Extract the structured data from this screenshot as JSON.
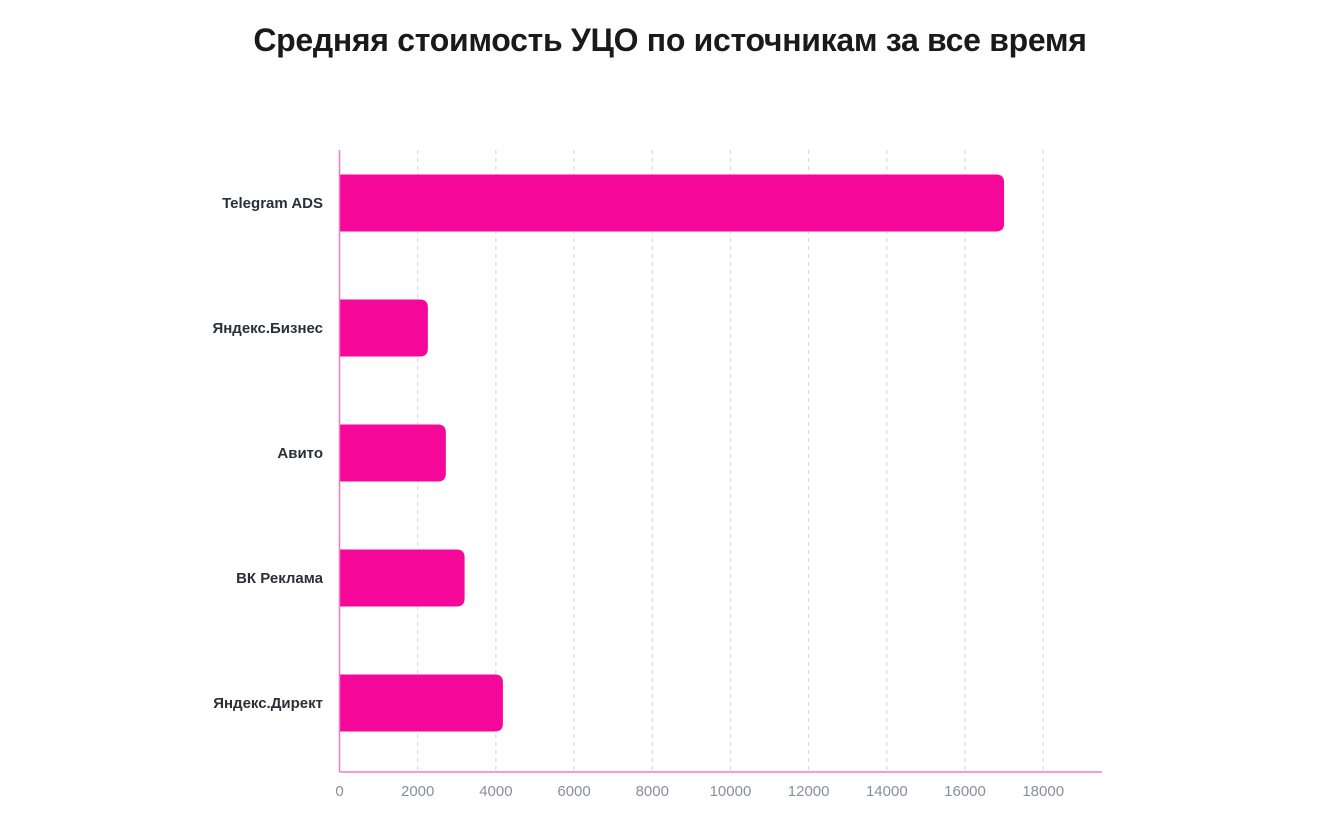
{
  "chart_data": {
    "type": "bar",
    "orientation": "horizontal",
    "title": "Средняя стоимость УЦО по источникам за все время",
    "categories": [
      "Telegram ADS",
      "Яндекс.Бизнес",
      "Авито",
      "ВК Реклама",
      "Яндекс.Директ"
    ],
    "values": [
      17000,
      2260,
      2720,
      3200,
      4180
    ],
    "xlabel": "",
    "ylabel": "",
    "xlim": [
      0,
      19500
    ],
    "xticks": [
      "0",
      "2000",
      "4000",
      "6000",
      "8000",
      "10000",
      "12000",
      "14000",
      "16000",
      "18000"
    ],
    "grid": "vertical dashed",
    "bar_color": "#f5079a",
    "axis_color": "#f57ac4"
  }
}
